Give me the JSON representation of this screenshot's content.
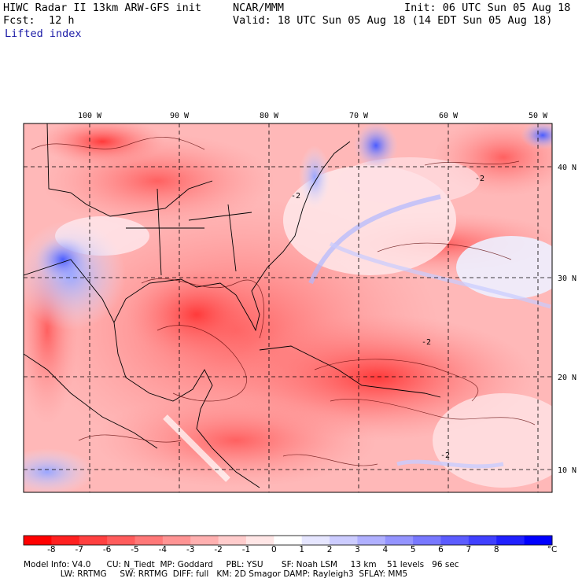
{
  "header": {
    "title_left": "HIWC Radar II 13km ARW-GFS init",
    "title_center": "NCAR/MMM",
    "init": "Init: 06 UTC Sun 05 Aug 18",
    "fcst_label": "Fcst:",
    "fcst_value": "12 h",
    "valid": "Valid: 18 UTC Sun 05 Aug 18 (14 EDT Sun 05 Aug 18)",
    "field": "Lifted index"
  },
  "map": {
    "lon_labels": [
      "100 W",
      "90 W",
      "80 W",
      "70 W",
      "60 W",
      "50 W"
    ],
    "lat_labels": [
      "40 N",
      "30 N",
      "20 N",
      "10 N"
    ],
    "contour_labels": [
      "-2",
      "-2",
      "-2",
      "-2"
    ]
  },
  "colorbar": {
    "labels": [
      "-8",
      "-7",
      "-6",
      "-5",
      "-4",
      "-3",
      "-2",
      "-1",
      "0",
      "1",
      "2",
      "3",
      "4",
      "5",
      "6",
      "7",
      "8"
    ],
    "unit": "°C",
    "colors": [
      "#ff0000",
      "#ff2020",
      "#ff4040",
      "#ff5c5c",
      "#ff7878",
      "#ff9494",
      "#ffb0b0",
      "#ffcccc",
      "#ffe6e6",
      "#ffffff",
      "#e6e6ff",
      "#ccccff",
      "#b0b0ff",
      "#9494ff",
      "#7878ff",
      "#5c5cff",
      "#4040ff",
      "#2020ff",
      "#0000ff"
    ]
  },
  "model_info": {
    "line1": "Model Info: V4.0      CU: N_Tiedt  MP: Goddard     PBL: YSU       SF: Noah LSM     13 km    51 levels   96 sec",
    "line2": "              LW: RRTMG     SW: RRTMG  DIFF: full   KM: 2D Smagor DAMP: Rayleigh3  SFLAY: MM5"
  }
}
